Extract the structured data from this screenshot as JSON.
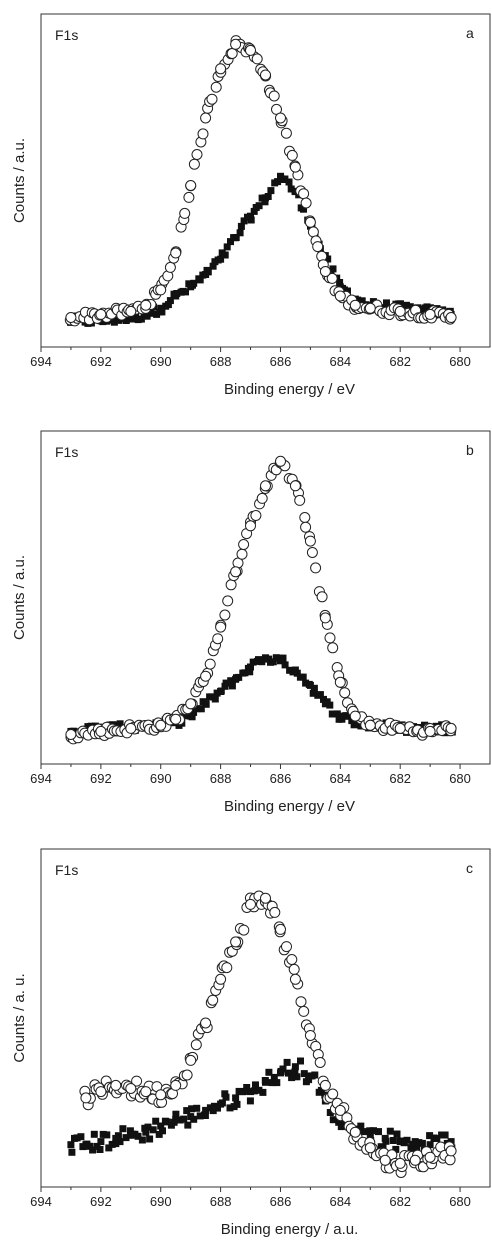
{
  "chart_data": [
    {
      "type": "scatter",
      "panel_label": "a",
      "annotation": "F1s",
      "xlabel": "Binding energy / eV",
      "ylabel": "Counts / a.u.",
      "xlim": [
        694,
        679
      ],
      "x_reversed": true,
      "x_ticks": [
        694,
        692,
        690,
        688,
        686,
        684,
        682,
        680
      ],
      "y_ticks_visible": false,
      "ylim": [
        0,
        100
      ],
      "series": [
        {
          "marker": "open-circle",
          "x": [
            693,
            692,
            691,
            690.5,
            690,
            689.5,
            689,
            688.5,
            688,
            687.5,
            687,
            686.5,
            686,
            685.5,
            685,
            684.5,
            684,
            683.5,
            683,
            682,
            681,
            680.3
          ],
          "values": [
            7,
            8,
            9,
            11,
            16,
            28,
            50,
            72,
            88,
            96,
            94,
            86,
            72,
            56,
            38,
            22,
            14,
            11,
            10,
            9,
            8,
            7
          ]
        },
        {
          "marker": "filled-square",
          "x": [
            693,
            692,
            691,
            690.5,
            690,
            689.5,
            689,
            688.5,
            688,
            687.5,
            687,
            686.5,
            686,
            685.5,
            685,
            684.5,
            684,
            683.5,
            683,
            682,
            681,
            680.3
          ],
          "values": [
            6,
            6,
            7,
            8,
            10,
            14,
            17,
            21,
            26,
            33,
            40,
            46,
            53,
            48,
            38,
            26,
            17,
            13,
            11,
            10,
            9,
            8
          ]
        }
      ]
    },
    {
      "type": "scatter",
      "panel_label": "b",
      "annotation": "F1s",
      "xlabel": "Binding energy / eV",
      "ylabel": "Counts / a.u.",
      "xlim": [
        694,
        679
      ],
      "x_reversed": true,
      "x_ticks": [
        694,
        692,
        690,
        688,
        686,
        684,
        682,
        680
      ],
      "y_ticks_visible": false,
      "ylim": [
        0,
        100
      ],
      "series": [
        {
          "marker": "open-circle",
          "x": [
            693,
            692,
            691,
            690,
            689.5,
            689,
            688.5,
            688,
            687.5,
            687,
            686.5,
            686,
            685.5,
            685,
            684.5,
            684,
            683.5,
            683,
            682,
            681,
            680.3
          ],
          "values": [
            7,
            8,
            9,
            10,
            12,
            17,
            26,
            42,
            60,
            75,
            88,
            96,
            88,
            70,
            45,
            24,
            13,
            10,
            9,
            8,
            9
          ]
        },
        {
          "marker": "filled-square",
          "x": [
            693,
            692,
            691,
            690,
            689.5,
            689,
            688.5,
            688,
            687.5,
            687,
            686.5,
            686,
            685.5,
            685,
            684.5,
            684,
            683.5,
            683,
            682,
            681,
            680.3
          ],
          "values": [
            8,
            9,
            9,
            10,
            11,
            13,
            17,
            21,
            25,
            29,
            32,
            31,
            28,
            23,
            17,
            13,
            11,
            10,
            9,
            9,
            9
          ]
        }
      ]
    },
    {
      "type": "scatter",
      "panel_label": "c",
      "annotation": "F1s",
      "xlabel": "Binding energy / a.u.",
      "ylabel": "Counts / a. u.",
      "xlim": [
        694,
        679
      ],
      "x_reversed": true,
      "x_ticks": [
        694,
        692,
        690,
        688,
        686,
        684,
        682,
        680
      ],
      "y_ticks_visible": false,
      "ylim": [
        0,
        100
      ],
      "series": [
        {
          "marker": "open-circle",
          "x": [
            692.5,
            692,
            691.5,
            691,
            690.5,
            690,
            689.5,
            689,
            688.5,
            688,
            687.5,
            687,
            686.5,
            686,
            685.5,
            685,
            684.5,
            684,
            683.5,
            683,
            682.5,
            682,
            681.5,
            681,
            680.3
          ],
          "values": [
            26,
            28,
            30,
            29,
            28,
            27,
            30,
            38,
            50,
            64,
            76,
            88,
            90,
            80,
            64,
            46,
            30,
            22,
            15,
            10,
            6,
            5,
            6,
            7,
            9
          ]
        },
        {
          "marker": "filled-square",
          "x": [
            693,
            692.5,
            692,
            691.5,
            691,
            690.5,
            690,
            689.5,
            689,
            688.5,
            688,
            687.5,
            687,
            686.5,
            686,
            685.5,
            685,
            684.5,
            684,
            683.5,
            683,
            682.5,
            682,
            681.5,
            681,
            680.3
          ],
          "values": [
            11,
            11,
            12,
            13,
            14,
            15,
            17,
            19,
            20,
            22,
            24,
            26,
            28,
            31,
            34,
            36,
            33,
            25,
            19,
            16,
            14,
            13,
            12,
            12,
            11,
            12
          ]
        }
      ]
    }
  ]
}
